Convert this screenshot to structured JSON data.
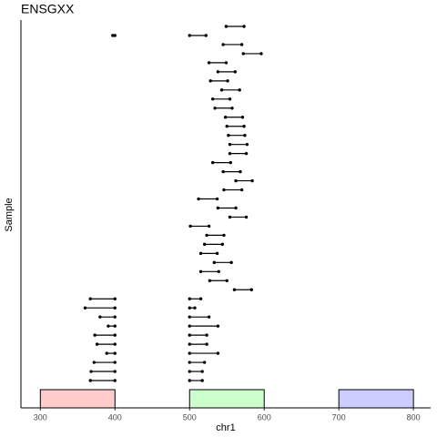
{
  "chart_data": {
    "type": "segment",
    "title": "ENSGXX",
    "xlabel": "chr1",
    "ylabel": "Sample",
    "xlim": [
      274,
      823
    ],
    "xticks": [
      300,
      400,
      500,
      600,
      700,
      800
    ],
    "rows": [
      [
        [
          549,
          573
        ]
      ],
      [
        [
          397,
          400
        ],
        [
          500,
          522
        ]
      ],
      [
        [
          545,
          570
        ]
      ],
      [
        [
          572,
          596
        ]
      ],
      [
        [
          526,
          549
        ]
      ],
      [
        [
          538,
          561
        ]
      ],
      [
        [
          528,
          551
        ]
      ],
      [
        [
          543,
          567
        ]
      ],
      [
        [
          531,
          554
        ]
      ],
      [
        [
          534,
          557
        ]
      ],
      [
        [
          548,
          571
        ]
      ],
      [
        [
          550,
          573
        ]
      ],
      [
        [
          552,
          574
        ]
      ],
      [
        [
          554,
          577
        ]
      ],
      [
        [
          554,
          576
        ]
      ],
      [
        [
          531,
          555
        ]
      ],
      [
        [
          545,
          568
        ]
      ],
      [
        [
          562,
          584
        ]
      ],
      [
        [
          546,
          570
        ]
      ],
      [
        [
          512,
          537
        ]
      ],
      [
        [
          538,
          562
        ]
      ],
      [
        [
          554,
          576
        ]
      ],
      [
        [
          501,
          526
        ]
      ],
      [
        [
          523,
          546
        ]
      ],
      [
        [
          520,
          544
        ]
      ],
      [
        [
          515,
          537
        ]
      ],
      [
        [
          533,
          556
        ]
      ],
      [
        [
          515,
          539
        ]
      ],
      [
        [
          527,
          550
        ]
      ],
      [
        [
          560,
          583
        ]
      ],
      [
        [
          367,
          400
        ],
        [
          500,
          515
        ]
      ],
      [
        [
          360,
          400
        ],
        [
          500,
          507
        ]
      ],
      [
        [
          380,
          400
        ],
        [
          500,
          526
        ]
      ],
      [
        [
          391,
          400
        ],
        [
          500,
          538
        ]
      ],
      [
        [
          373,
          400
        ],
        [
          500,
          523
        ]
      ],
      [
        [
          376,
          400
        ],
        [
          500,
          523
        ]
      ],
      [
        [
          389,
          400
        ],
        [
          500,
          538
        ]
      ],
      [
        [
          372,
          400
        ],
        [
          500,
          520
        ]
      ],
      [
        [
          368,
          400
        ],
        [
          500,
          517
        ]
      ],
      [
        [
          367,
          400
        ],
        [
          500,
          517
        ]
      ]
    ],
    "regions": [
      {
        "start": 300,
        "end": 400,
        "color": "#ffcccc"
      },
      {
        "start": 500,
        "end": 600,
        "color": "#ccffcc"
      },
      {
        "start": 700,
        "end": 800,
        "color": "#ccccff"
      }
    ],
    "color": "#000000"
  }
}
